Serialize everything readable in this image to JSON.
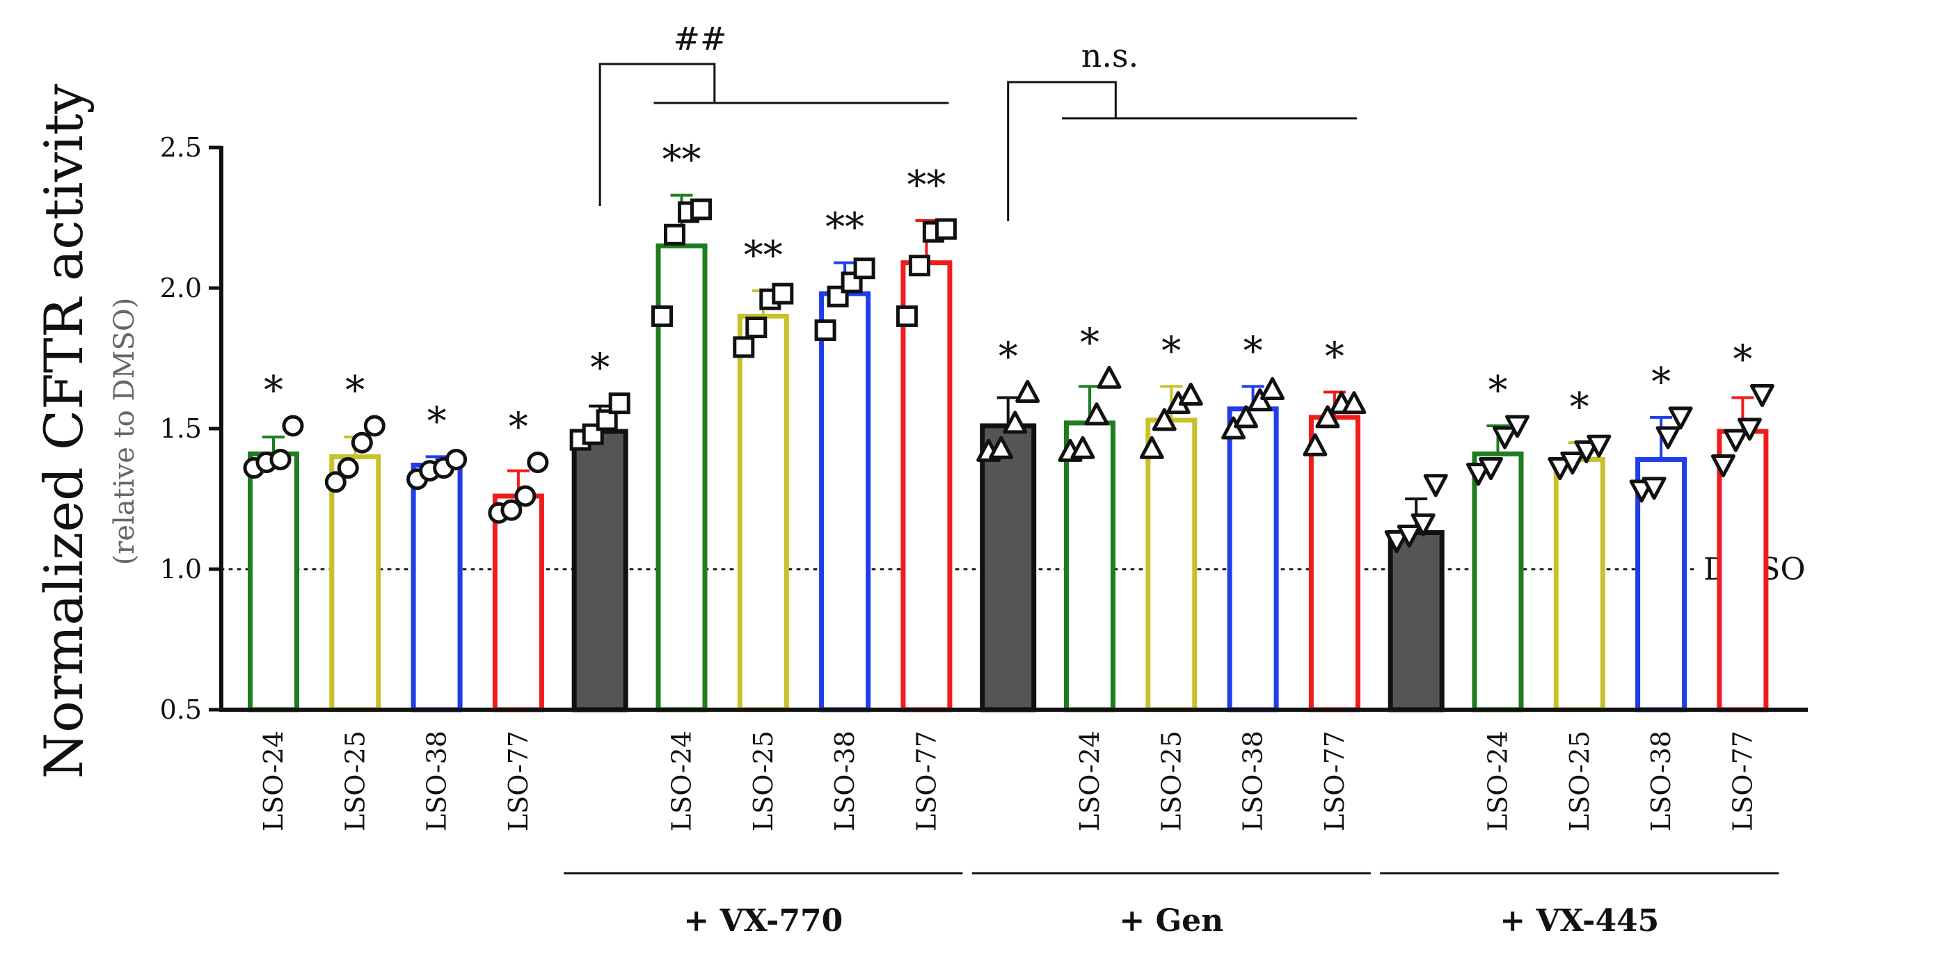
{
  "chart_data": {
    "type": "bar",
    "ylabel": "Normalized CFTR activity",
    "ylabel_sub": "(relative to DMSO)",
    "ylim": [
      0.5,
      2.5
    ],
    "yticks": [
      0.5,
      1.0,
      1.5,
      2.0,
      2.5
    ],
    "ytick_labels": [
      "0.5",
      "1.0",
      "1.5",
      "2.0",
      "2.5"
    ],
    "reference_line": {
      "value": 1.0,
      "label": "DMSO",
      "style": "dotted"
    },
    "colors": {
      "LSO-24": "#1e7d1e",
      "LSO-25": "#c8c22a",
      "LSO-38": "#1f3de8",
      "LSO-77": "#f01c1c",
      "control": "#4d4d4d"
    },
    "groups": [
      {
        "name": "",
        "label": ""
      },
      {
        "name": "+ VX-770",
        "label": "+ VX-770"
      },
      {
        "name": "+ Gen",
        "label": "+ Gen"
      },
      {
        "name": "+ VX-445",
        "label": "+ VX-445"
      }
    ],
    "bars": [
      {
        "group": 0,
        "label": "LSO-24",
        "color_key": "LSO-24",
        "filled": false,
        "value": 1.41,
        "err": 0.06,
        "marker": "circle",
        "points": [
          1.36,
          1.38,
          1.39,
          1.51
        ],
        "sig": "*"
      },
      {
        "group": 0,
        "label": "LSO-25",
        "color_key": "LSO-25",
        "filled": false,
        "value": 1.4,
        "err": 0.07,
        "marker": "circle",
        "points": [
          1.31,
          1.36,
          1.45,
          1.51
        ],
        "sig": "*"
      },
      {
        "group": 0,
        "label": "LSO-38",
        "color_key": "LSO-38",
        "filled": false,
        "value": 1.37,
        "err": 0.03,
        "marker": "circle",
        "points": [
          1.32,
          1.35,
          1.36,
          1.39
        ],
        "sig": "*"
      },
      {
        "group": 0,
        "label": "LSO-77",
        "color_key": "LSO-77",
        "filled": false,
        "value": 1.26,
        "err": 0.09,
        "marker": "circle",
        "points": [
          1.2,
          1.21,
          1.26,
          1.38
        ],
        "sig": "*"
      },
      {
        "group": 1,
        "label": "",
        "color_key": "control",
        "filled": true,
        "value": 1.49,
        "err": 0.09,
        "marker": "square",
        "points": [
          1.46,
          1.48,
          1.53,
          1.59
        ],
        "sig": "*"
      },
      {
        "group": 1,
        "label": "LSO-24",
        "color_key": "LSO-24",
        "filled": false,
        "value": 2.15,
        "err": 0.18,
        "marker": "square",
        "points": [
          1.9,
          2.19,
          2.27,
          2.28
        ],
        "sig": "**"
      },
      {
        "group": 1,
        "label": "LSO-25",
        "color_key": "LSO-25",
        "filled": false,
        "value": 1.9,
        "err": 0.09,
        "marker": "square",
        "points": [
          1.79,
          1.86,
          1.96,
          1.98
        ],
        "sig": "**"
      },
      {
        "group": 1,
        "label": "LSO-38",
        "color_key": "LSO-38",
        "filled": false,
        "value": 1.98,
        "err": 0.11,
        "marker": "square",
        "points": [
          1.85,
          1.97,
          2.02,
          2.07
        ],
        "sig": "**"
      },
      {
        "group": 1,
        "label": "LSO-77",
        "color_key": "LSO-77",
        "filled": false,
        "value": 2.09,
        "err": 0.15,
        "marker": "square",
        "points": [
          1.9,
          2.08,
          2.2,
          2.21
        ],
        "sig": "**"
      },
      {
        "group": 2,
        "label": "",
        "color_key": "control",
        "filled": true,
        "value": 1.51,
        "err": 0.1,
        "marker": "triangle-up",
        "points": [
          1.42,
          1.43,
          1.52,
          1.63
        ],
        "sig": "*"
      },
      {
        "group": 2,
        "label": "LSO-24",
        "color_key": "LSO-24",
        "filled": false,
        "value": 1.52,
        "err": 0.13,
        "marker": "triangle-up",
        "points": [
          1.42,
          1.43,
          1.55,
          1.68
        ],
        "sig": "*"
      },
      {
        "group": 2,
        "label": "LSO-25",
        "color_key": "LSO-25",
        "filled": false,
        "value": 1.53,
        "err": 0.12,
        "marker": "triangle-up",
        "points": [
          1.43,
          1.53,
          1.59,
          1.62
        ],
        "sig": "*"
      },
      {
        "group": 2,
        "label": "LSO-38",
        "color_key": "LSO-38",
        "filled": false,
        "value": 1.57,
        "err": 0.08,
        "marker": "triangle-up",
        "points": [
          1.5,
          1.54,
          1.6,
          1.64
        ],
        "sig": "*"
      },
      {
        "group": 2,
        "label": "LSO-77",
        "color_key": "LSO-77",
        "filled": false,
        "value": 1.54,
        "err": 0.09,
        "marker": "triangle-up",
        "points": [
          1.44,
          1.54,
          1.59,
          1.59
        ],
        "sig": "*"
      },
      {
        "group": 3,
        "label": "",
        "color_key": "control",
        "filled": true,
        "value": 1.13,
        "err": 0.12,
        "marker": "triangle-down",
        "points": [
          1.1,
          1.12,
          1.16,
          1.3
        ],
        "sig": ""
      },
      {
        "group": 3,
        "label": "LSO-24",
        "color_key": "LSO-24",
        "filled": false,
        "value": 1.41,
        "err": 0.1,
        "marker": "triangle-down",
        "points": [
          1.34,
          1.36,
          1.47,
          1.51
        ],
        "sig": "*"
      },
      {
        "group": 3,
        "label": "LSO-25",
        "color_key": "LSO-25",
        "filled": false,
        "value": 1.39,
        "err": 0.06,
        "marker": "triangle-down",
        "points": [
          1.36,
          1.38,
          1.42,
          1.44
        ],
        "sig": "*"
      },
      {
        "group": 3,
        "label": "LSO-38",
        "color_key": "LSO-38",
        "filled": false,
        "value": 1.39,
        "err": 0.15,
        "marker": "triangle-down",
        "points": [
          1.28,
          1.29,
          1.47,
          1.54
        ],
        "sig": "*"
      },
      {
        "group": 3,
        "label": "LSO-77",
        "color_key": "LSO-77",
        "filled": false,
        "value": 1.49,
        "err": 0.12,
        "marker": "triangle-down",
        "points": [
          1.37,
          1.46,
          1.5,
          1.62
        ],
        "sig": "*"
      }
    ],
    "brackets": [
      {
        "label": "##",
        "from_bar": 4,
        "to_bars": [
          5,
          8
        ]
      },
      {
        "label": "n.s.",
        "from_bar": 9,
        "to_bars": [
          10,
          13
        ]
      }
    ]
  }
}
